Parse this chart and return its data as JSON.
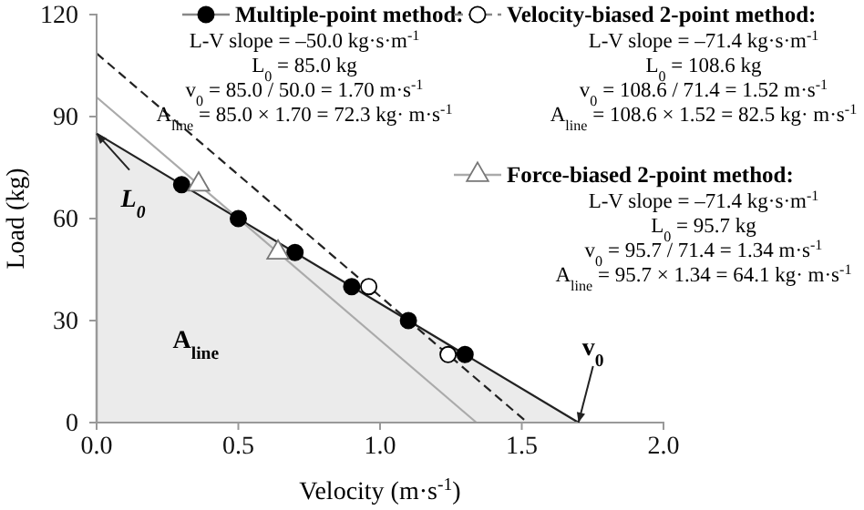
{
  "chart_data": {
    "type": "scatter",
    "xlabel": "Velocity (m·s$^{-1}$)",
    "ylabel": "Load (kg)",
    "xlim": [
      0,
      2
    ],
    "ylim": [
      0,
      120
    ],
    "xticks": [
      {
        "value": 0,
        "label": "0.0"
      },
      {
        "value": 0.5,
        "label": "0.5"
      },
      {
        "value": 1,
        "label": "1.0"
      },
      {
        "value": 1.5,
        "label": "1.5"
      },
      {
        "value": 2,
        "label": "2.0"
      }
    ],
    "yticks": [
      0,
      30,
      60,
      90,
      120
    ],
    "grid": false,
    "legend": "top right",
    "series": [
      {
        "type": "area",
        "color": "#222222",
        "line_style": "solid",
        "x": [
          0,
          1.7
        ],
        "values": [
          85,
          0
        ]
      },
      {
        "type": "line",
        "color": "#222222",
        "line_style": "dashed",
        "x": [
          0,
          1.52
        ],
        "values": [
          108.6,
          0
        ]
      },
      {
        "type": "line",
        "color": "#aaaaaa",
        "line_style": "solid",
        "x": [
          0,
          1.34
        ],
        "values": [
          95.7,
          0
        ]
      },
      {
        "type": "scatter",
        "name": "Multiple-point method:",
        "marker": "circle",
        "color": "#000000",
        "x": [
          0.3,
          0.5,
          0.7,
          0.9,
          1.1,
          1.3
        ],
        "values": [
          70,
          60,
          50,
          40,
          30,
          20
        ]
      },
      {
        "type": "scatter",
        "name": "Velocity-biased 2-point method:",
        "marker": "circle",
        "color": "#ffffff",
        "x": [
          0.96,
          1.24
        ],
        "values": [
          40,
          20
        ]
      },
      {
        "type": "scatter",
        "name": "Force-biased 2-point method:",
        "marker": "triangle",
        "color": "#ffffff",
        "x": [
          0.36,
          0.64
        ],
        "values": [
          70,
          50
        ]
      }
    ],
    "annotations": [
      {
        "text": "L$_{0}$",
        "x": 0,
        "y": 85
      },
      "A$_{line}$",
      {
        "text": "v$_{0}$",
        "x": 1.7,
        "y": 0
      },
      "L-V slope = –50.0 kg·s·m$^{-1}$",
      "L$_{0}$ = 85.0 kg",
      "v$_{0}$ = 85.0 / 50.0 = 1.70 m·s$^{-1}$",
      "A$_{line}$ = 85.0 × 1.70 = 72.3 kg· m·s$^{-1}$",
      "L-V slope = –71.4 kg·s·m$^{-1}$",
      "L$_{0}$ = 108.6 kg",
      "v$_{0}$ = 108.6 / 71.4 = 1.52 m·s$^{-1}$",
      "A$_{line}$ = 108.6 × 1.52 = 82.5 kg· m·s$^{-1}$",
      "L-V slope = –71.4 kg·s·m$^{-1}$",
      "L$_{0}$ = 95.7 kg",
      "v$_{0}$ = 95.7 / 71.4 = 1.34 m·s$^{-1}$",
      "A$_{line}$ = 95.7 × 1.34 = 64.1 kg· m·s$^{-1}$"
    ]
  }
}
